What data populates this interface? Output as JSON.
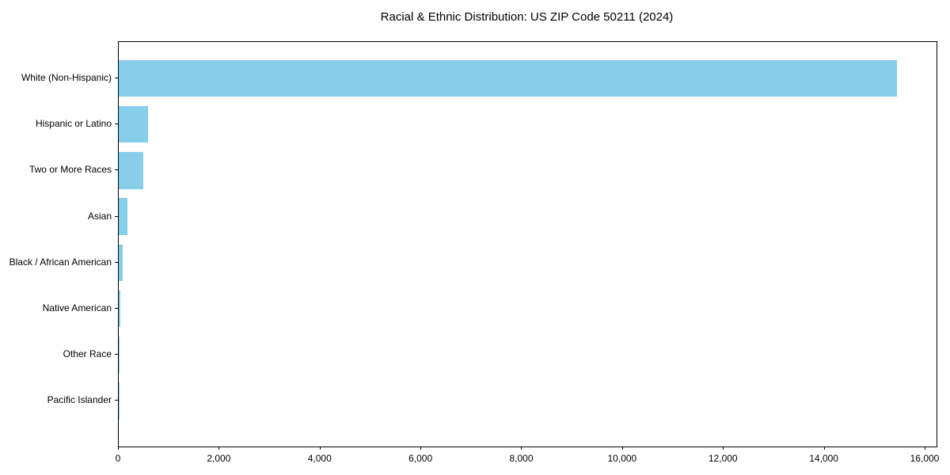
{
  "chart_data": {
    "type": "bar",
    "orientation": "horizontal",
    "title": "Racial & Ethnic Distribution: US ZIP Code 50211 (2024)",
    "categories": [
      "White (Non-Hispanic)",
      "Hispanic or Latino",
      "Two or More Races",
      "Asian",
      "Black / African American",
      "Native American",
      "Other Race",
      "Pacific Islander"
    ],
    "values": [
      15440,
      585,
      490,
      180,
      85,
      30,
      12,
      3
    ],
    "xlabel": "",
    "ylabel": "",
    "xlim": [
      0,
      16220
    ],
    "x_ticks": [
      0,
      2000,
      4000,
      6000,
      8000,
      10000,
      12000,
      14000,
      16000
    ],
    "x_tick_labels": [
      "0",
      "2,000",
      "4,000",
      "6,000",
      "8,000",
      "10,000",
      "12,000",
      "14,000",
      "16,000"
    ],
    "bar_color": "#87CEEB",
    "frame_color": "#000000",
    "text_color": "#000000",
    "background_color": "#ffffff",
    "grid": false,
    "legend": null
  }
}
